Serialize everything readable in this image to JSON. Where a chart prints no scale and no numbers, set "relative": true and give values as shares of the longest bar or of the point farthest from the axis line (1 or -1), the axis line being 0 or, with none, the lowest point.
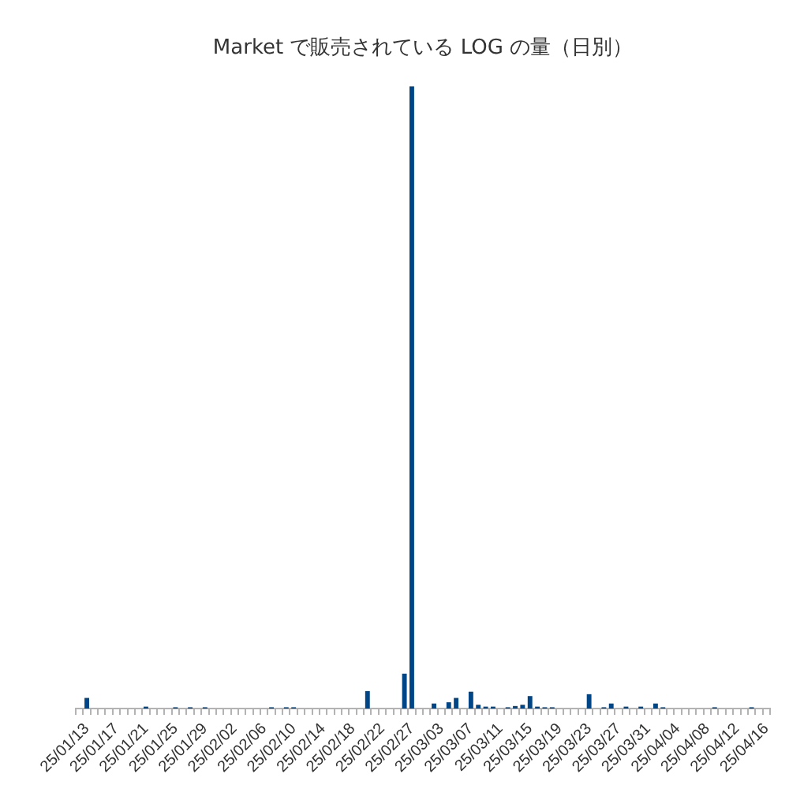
{
  "chart_data": {
    "type": "bar",
    "title": "Market で販売されている LOG の量（日別）",
    "relative": true,
    "legend": false,
    "color": "#004586",
    "categories": [
      null,
      "25/01/13",
      null,
      null,
      null,
      "25/01/17",
      null,
      null,
      null,
      "25/01/21",
      null,
      null,
      null,
      "25/01/25",
      null,
      null,
      null,
      "25/01/29",
      null,
      null,
      null,
      "25/02/02",
      null,
      null,
      null,
      "25/02/06",
      null,
      null,
      null,
      "25/02/10",
      null,
      null,
      null,
      "25/02/14",
      null,
      null,
      null,
      "25/02/18",
      null,
      null,
      null,
      "25/02/22",
      null,
      null,
      null,
      "25/02/27",
      null,
      null,
      null,
      "25/03/03",
      null,
      null,
      null,
      "25/03/07",
      null,
      null,
      null,
      "25/03/11",
      null,
      null,
      null,
      "25/03/15",
      null,
      null,
      null,
      "25/03/19",
      null,
      null,
      null,
      "25/03/23",
      null,
      null,
      null,
      "25/03/27",
      null,
      null,
      null,
      "25/03/31",
      null,
      null,
      null,
      "25/04/04",
      null,
      null,
      null,
      "25/04/08",
      null,
      null,
      null,
      "25/04/12",
      null,
      null,
      null,
      "25/04/16"
    ],
    "values": [
      0,
      0.017,
      0,
      0,
      0,
      0,
      0,
      0,
      0,
      0.003,
      0,
      0,
      0,
      0.002,
      0,
      0.002,
      0,
      0.002,
      0,
      0,
      0,
      0,
      0,
      0,
      0,
      0,
      0.002,
      0,
      0.002,
      0.002,
      0,
      0,
      0,
      0,
      0,
      0,
      0,
      0,
      0,
      0.028,
      0,
      0,
      0,
      0,
      0.056,
      1,
      0,
      0,
      0.008,
      0,
      0.01,
      0.017,
      0,
      0.027,
      0.006,
      0.003,
      0.003,
      0,
      0.002,
      0.004,
      0.006,
      0.02,
      0.003,
      0.002,
      0.002,
      0,
      0,
      0,
      0,
      0.023,
      0,
      0.002,
      0.008,
      0,
      0.003,
      0,
      0.003,
      0,
      0.008,
      0.002,
      0,
      0,
      0,
      0,
      0,
      0,
      0.002,
      0,
      0,
      0,
      0,
      0.002,
      0,
      0
    ]
  }
}
